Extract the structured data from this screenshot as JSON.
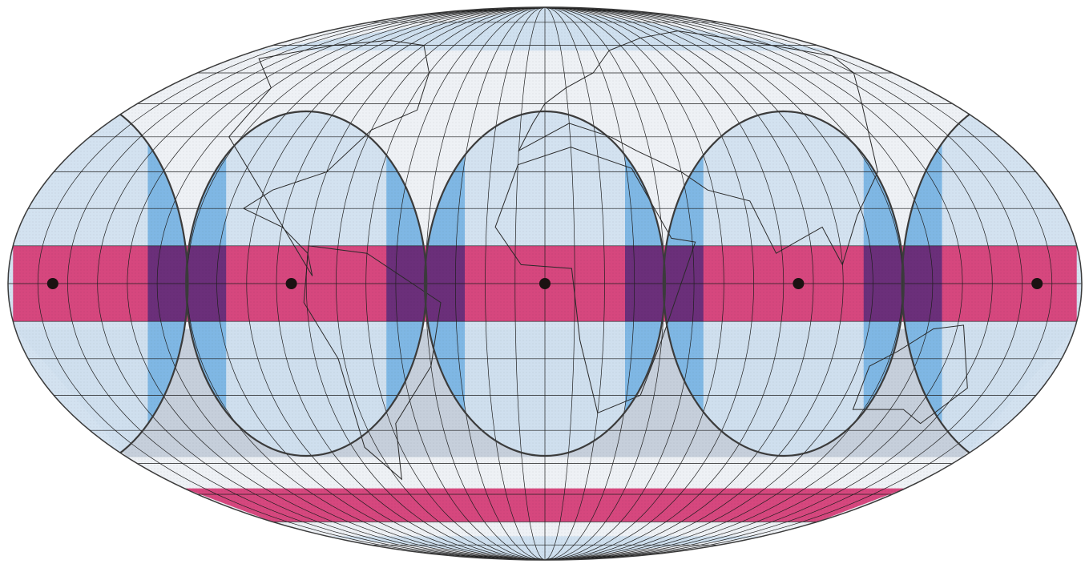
{
  "map": {
    "projection": "ellipse-world-map",
    "colors": {
      "background": "#ffffff",
      "ocean_base": "#eef1f5",
      "pale_blue": "#cfe0ef",
      "mid_blue": "#7fb7e4",
      "gray_blue": "#c6cfdb",
      "pink_band": "#d6477e",
      "purple_overlap": "#6b2f7a",
      "gridline": "#1f1f1f",
      "outline": "#3b3b3b",
      "dot": "#1b1212"
    },
    "graticule": {
      "meridian_step_degrees": 10,
      "parallel_step_degrees": 10
    },
    "bands": [
      {
        "id": "equatorial-band",
        "lat_min": -10,
        "lat_max": 10,
        "color": "pink_band"
      },
      {
        "id": "southern-band",
        "lat_min": -70,
        "lat_max": -58,
        "color": "pink_band"
      }
    ],
    "polar_caps": [
      {
        "id": "north-polar-cap",
        "lat_min": 68,
        "color": "pale_blue"
      },
      {
        "id": "south-polar-cap",
        "lat_max": -76,
        "color": "pale_blue"
      }
    ],
    "zones": [
      {
        "id": "zone-west-edge",
        "center_lon": -160,
        "center_lat": 0
      },
      {
        "id": "zone-americas",
        "center_lon": -80,
        "center_lat": 0
      },
      {
        "id": "zone-africa",
        "center_lon": 0,
        "center_lat": 0
      },
      {
        "id": "zone-indian-ocean",
        "center_lon": 80,
        "center_lat": 0
      },
      {
        "id": "zone-east-edge",
        "center_lon": 160,
        "center_lat": 0
      }
    ],
    "center_points": [
      {
        "id": "dot-1",
        "lon": -165,
        "lat": 0
      },
      {
        "id": "dot-2",
        "lon": -85,
        "lat": 0
      },
      {
        "id": "dot-3",
        "lon": 0,
        "lat": 0
      },
      {
        "id": "dot-4",
        "lon": 85,
        "lat": 0
      },
      {
        "id": "dot-5",
        "lon": 165,
        "lat": 0
      }
    ]
  }
}
